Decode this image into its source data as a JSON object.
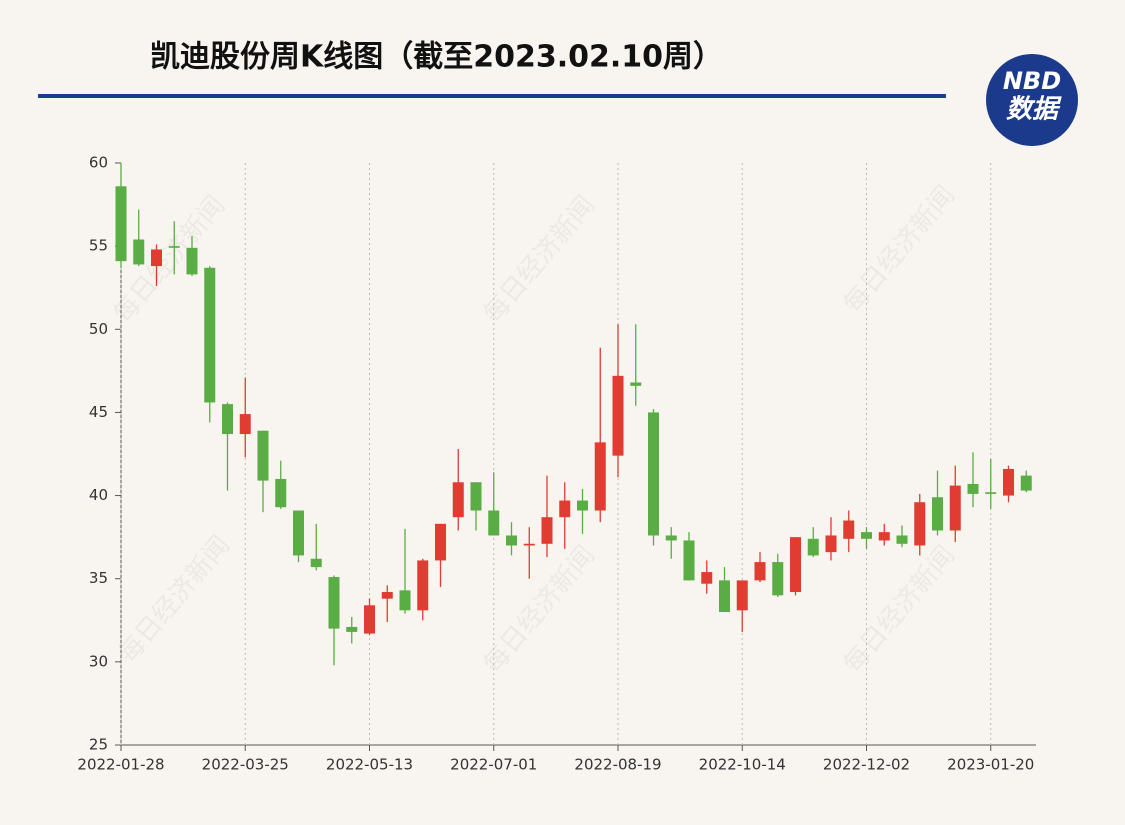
{
  "chart_data": {
    "type": "candlestick",
    "title": "凯迪股份周K线图（截至2023.02.10周）",
    "logo": {
      "brand": "NBD",
      "sub": "数据"
    },
    "watermark": "每日经济新闻",
    "categories": [
      "2022-01-28",
      null,
      null,
      null,
      null,
      null,
      null,
      "2022-03-25",
      null,
      null,
      null,
      null,
      null,
      null,
      "2022-05-13",
      null,
      null,
      null,
      null,
      null,
      null,
      "2022-07-01",
      null,
      null,
      null,
      null,
      null,
      null,
      "2022-08-19",
      null,
      null,
      null,
      null,
      null,
      null,
      "2022-10-14",
      null,
      null,
      null,
      null,
      null,
      null,
      "2022-12-02",
      null,
      null,
      null,
      null,
      null,
      null,
      "2023-01-20",
      null,
      null
    ],
    "open": [
      58.6,
      55.4,
      53.8,
      55.0,
      54.9,
      53.7,
      45.5,
      43.7,
      43.9,
      41.0,
      39.1,
      36.2,
      35.1,
      32.1,
      31.7,
      33.8,
      34.3,
      33.1,
      36.1,
      38.7,
      40.8,
      39.1,
      37.6,
      37.0,
      37.1,
      38.7,
      39.7,
      39.1,
      42.4,
      46.8,
      45.0,
      37.6,
      37.3,
      34.7,
      34.9,
      33.1,
      34.9,
      36.0,
      34.2,
      37.4,
      36.6,
      37.4,
      37.8,
      37.3,
      37.6,
      37.0,
      39.9,
      37.9,
      40.7,
      40.2,
      40.0,
      41.2
    ],
    "high": [
      60.0,
      57.2,
      55.1,
      56.5,
      55.6,
      53.8,
      45.6,
      47.1,
      43.9,
      42.1,
      39.1,
      38.3,
      35.2,
      32.7,
      33.8,
      34.6,
      38.0,
      36.2,
      38.3,
      42.8,
      40.8,
      41.4,
      38.4,
      38.1,
      41.2,
      40.8,
      40.4,
      48.9,
      50.3,
      50.3,
      45.2,
      38.1,
      37.8,
      36.1,
      35.7,
      34.9,
      36.6,
      36.5,
      37.5,
      38.1,
      38.7,
      39.1,
      38.1,
      38.3,
      38.2,
      40.1,
      41.5,
      41.8,
      42.6,
      42.2,
      41.8,
      41.5
    ],
    "low": [
      53.7,
      53.8,
      52.6,
      53.3,
      53.2,
      44.4,
      40.3,
      42.3,
      39.0,
      39.2,
      36.0,
      35.5,
      29.8,
      31.1,
      31.6,
      32.4,
      32.9,
      32.5,
      34.5,
      37.9,
      37.9,
      37.6,
      36.4,
      35.0,
      36.3,
      36.8,
      37.7,
      38.4,
      41.1,
      45.4,
      37.0,
      36.2,
      34.9,
      34.1,
      33.0,
      31.8,
      34.8,
      33.9,
      34.0,
      36.3,
      36.1,
      36.6,
      36.8,
      37.0,
      36.9,
      36.4,
      37.6,
      37.2,
      39.3,
      39.2,
      39.6,
      40.2
    ],
    "close": [
      54.1,
      53.9,
      54.8,
      54.9,
      53.3,
      45.6,
      43.7,
      44.9,
      40.9,
      39.3,
      36.4,
      35.7,
      32.0,
      31.8,
      33.4,
      34.2,
      33.1,
      36.1,
      38.3,
      40.8,
      39.1,
      37.6,
      37.0,
      37.1,
      38.7,
      39.7,
      39.1,
      43.2,
      47.2,
      46.6,
      37.6,
      37.3,
      34.9,
      35.4,
      33.0,
      34.9,
      36.0,
      34.0,
      37.5,
      36.4,
      37.6,
      38.5,
      37.4,
      37.8,
      37.1,
      39.6,
      37.9,
      40.6,
      40.1,
      40.1,
      41.6,
      40.3
    ],
    "up_color": "#e03c31",
    "down_color": "#5aac44",
    "ylim": [
      25,
      60
    ],
    "yticks": [
      25,
      30,
      35,
      40,
      45,
      50,
      55,
      60
    ],
    "grid": true
  }
}
